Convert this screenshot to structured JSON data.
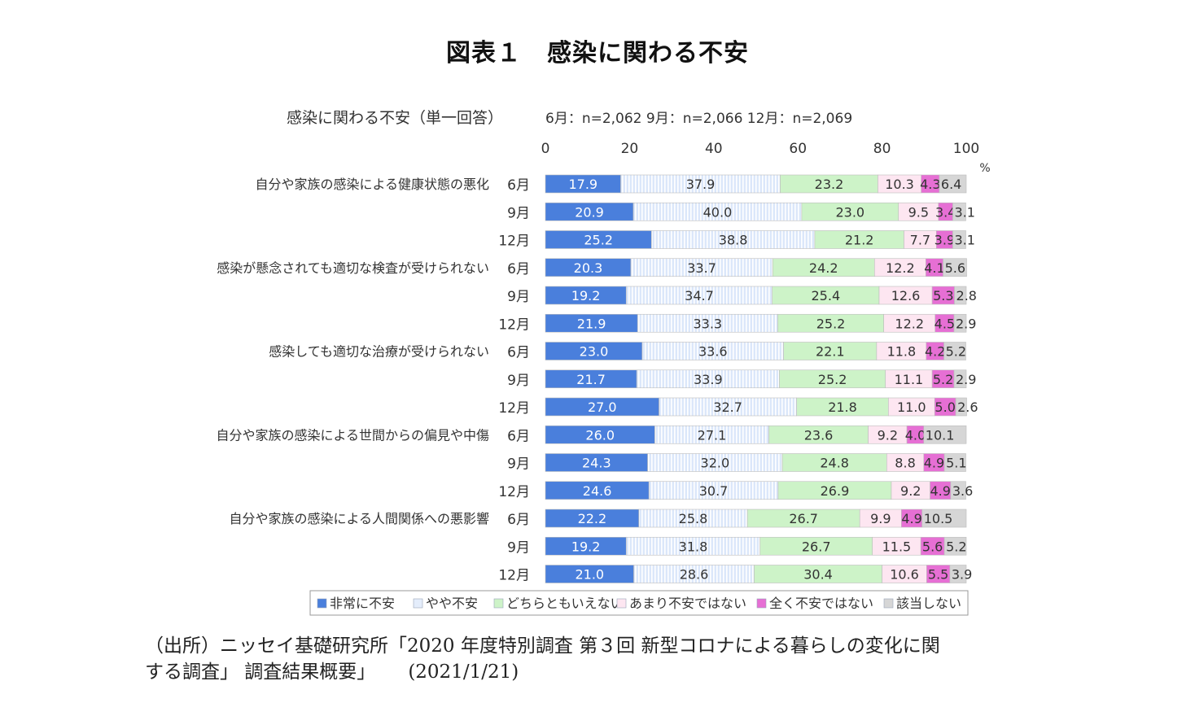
{
  "figure_title": "図表１　感染に関わる不安",
  "chart_title": "感染に関わる不安（単一回答）",
  "sample_sizes": "6月：n=2,062  9月：n=2,066  12月：n=2,069",
  "source": {
    "line1": "（出所）ニッセイ基礎研究所「2020 年度特別調査 第３回 新型コロナによる暮らしの変化に関",
    "line2": "する調査」 調査結果概要」",
    "date": "(2021/1/21)"
  },
  "chart_data": {
    "type": "bar",
    "orientation": "horizontal",
    "stacked": "100%",
    "xlim": [
      0,
      100
    ],
    "xticks": [
      0,
      20,
      40,
      60,
      80,
      100
    ],
    "xunit": "%",
    "legend_position": "bottom",
    "series": [
      {
        "name": "非常に不安",
        "color": "#4a7fdc"
      },
      {
        "name": "やや不安",
        "color": "#cfe0f8"
      },
      {
        "name": "どちらともいえない",
        "color": "#cdf3c8"
      },
      {
        "name": "あまり不安ではない",
        "color": "#fde6f1"
      },
      {
        "name": "全く不安ではない",
        "color": "#e66fd4"
      },
      {
        "name": "該当しない",
        "color": "#d6d6d6"
      }
    ],
    "groups": [
      {
        "label": "自分や家族の感染による健康状態の悪化",
        "rows": [
          {
            "period": "6月",
            "values": [
              17.9,
              37.9,
              23.2,
              10.3,
              4.3,
              6.4
            ]
          },
          {
            "period": "9月",
            "values": [
              20.9,
              40.0,
              23.0,
              9.5,
              3.4,
              3.1
            ]
          },
          {
            "period": "12月",
            "values": [
              25.2,
              38.8,
              21.2,
              7.7,
              3.9,
              3.1
            ]
          }
        ]
      },
      {
        "label": "感染が懸念されても適切な検査が受けられない",
        "rows": [
          {
            "period": "6月",
            "values": [
              20.3,
              33.7,
              24.2,
              12.2,
              4.1,
              5.6
            ]
          },
          {
            "period": "9月",
            "values": [
              19.2,
              34.7,
              25.4,
              12.6,
              5.3,
              2.8
            ]
          },
          {
            "period": "12月",
            "values": [
              21.9,
              33.3,
              25.2,
              12.2,
              4.5,
              2.9
            ]
          }
        ]
      },
      {
        "label": "感染しても適切な治療が受けられない",
        "rows": [
          {
            "period": "6月",
            "values": [
              23.0,
              33.6,
              22.1,
              11.8,
              4.2,
              5.2
            ]
          },
          {
            "period": "9月",
            "values": [
              21.7,
              33.9,
              25.2,
              11.1,
              5.2,
              2.9
            ]
          },
          {
            "period": "12月",
            "values": [
              27.0,
              32.7,
              21.8,
              11.0,
              5.0,
              2.6
            ]
          }
        ]
      },
      {
        "label": "自分や家族の感染による世間からの偏見や中傷",
        "rows": [
          {
            "period": "6月",
            "values": [
              26.0,
              27.1,
              23.6,
              9.2,
              4.0,
              10.1
            ]
          },
          {
            "period": "9月",
            "values": [
              24.3,
              32.0,
              24.8,
              8.8,
              4.9,
              5.1
            ]
          },
          {
            "period": "12月",
            "values": [
              24.6,
              30.7,
              26.9,
              9.2,
              4.9,
              3.6
            ]
          }
        ]
      },
      {
        "label": "自分や家族の感染による人間関係への悪影響",
        "rows": [
          {
            "period": "6月",
            "values": [
              22.2,
              25.8,
              26.7,
              9.9,
              4.9,
              10.5
            ]
          },
          {
            "period": "9月",
            "values": [
              19.2,
              31.8,
              26.7,
              11.5,
              5.6,
              5.2
            ]
          },
          {
            "period": "12月",
            "values": [
              21.0,
              28.6,
              30.4,
              10.6,
              5.5,
              3.9
            ]
          }
        ]
      }
    ]
  }
}
